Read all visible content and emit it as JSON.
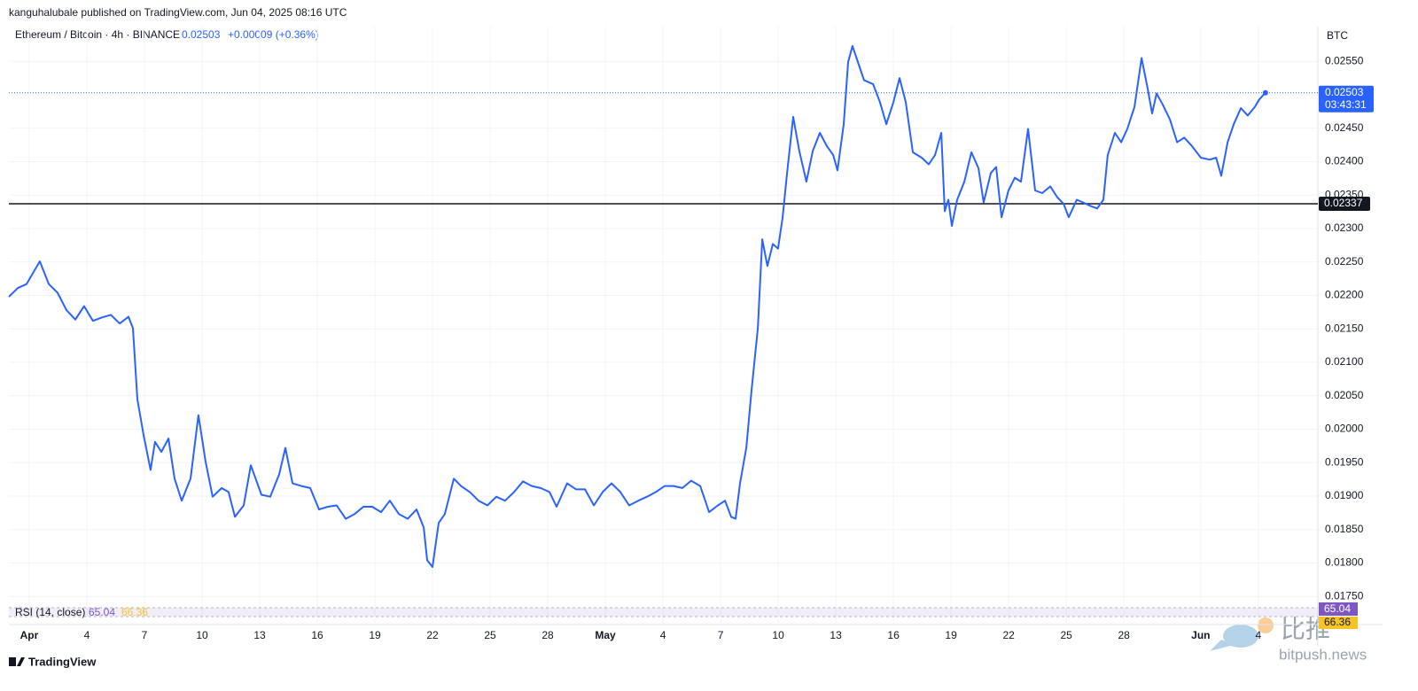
{
  "header": {
    "publisher": "kanguhalubale published on TradingView.com, Jun 04, 2025 08:16 UTC"
  },
  "chart_data": {
    "type": "line",
    "title": "Ethereum / Bitcoin · 4h · BINANCE",
    "last_price": 0.02503,
    "change": "+0.00009 (+0.36%)",
    "currency": "BTC",
    "countdown": "03:43:31",
    "color": "#2962ff",
    "grid": true,
    "x": [
      -1.06,
      -0.6,
      -0.14,
      0.55,
      1.02,
      1.48,
      1.94,
      2.4,
      2.86,
      3.32,
      3.78,
      4.25,
      4.71,
      5.17,
      5.4,
      5.63,
      5.95,
      6.32,
      6.55,
      6.88,
      7.25,
      7.57,
      7.94,
      8.4,
      8.81,
      9.18,
      9.55,
      10.02,
      10.38,
      10.71,
      11.17,
      11.54,
      12.09,
      12.55,
      13.01,
      13.34,
      13.71,
      14.17,
      14.63,
      15.09,
      15.55,
      16.01,
      16.48,
      16.94,
      17.4,
      17.86,
      18.32,
      18.78,
      19.25,
      19.71,
      20.17,
      20.54,
      20.72,
      21.0,
      21.32,
      21.64,
      22.11,
      22.48,
      22.94,
      23.4,
      23.86,
      24.32,
      24.78,
      25.25,
      25.71,
      26.17,
      26.63,
      27.09,
      27.46,
      28.01,
      28.48,
      28.94,
      29.4,
      29.86,
      30.32,
      30.78,
      31.24,
      31.71,
      32.17,
      32.63,
      33.09,
      33.55,
      34.01,
      34.47,
      34.94,
      35.4,
      35.86,
      36.23,
      36.55,
      36.78,
      37.01,
      37.34,
      37.61,
      37.94,
      38.17,
      38.44,
      38.72,
      38.99,
      39.23,
      39.46,
      39.78,
      40.1,
      40.47,
      40.8,
      41.17,
      41.54,
      41.86,
      42.09,
      42.41,
      42.64,
      42.87,
      43.15,
      43.47,
      43.94,
      44.3,
      44.63,
      45.0,
      45.32,
      45.64,
      46.01,
      46.47,
      46.84,
      47.17,
      47.49,
      47.67,
      47.86,
      48.04,
      48.32,
      48.69,
      49.06,
      49.43,
      49.7,
      50.07,
      50.35,
      50.63,
      50.99,
      51.32,
      51.64,
      52.01,
      52.38,
      52.75,
      53.17,
      53.53,
      53.86,
      54.13,
      54.55,
      54.87,
      55.24,
      55.61,
      55.93,
      56.16,
      56.53,
      56.86,
      57.18,
      57.55,
      57.92,
      58.24,
      58.47,
      58.7,
      59.03,
      59.4,
      59.77,
      60.14,
      60.55,
      61.01,
      61.47,
      61.8,
      62.07,
      62.4,
      62.72,
      63.09,
      63.45,
      63.82,
      64.05,
      64.37
    ],
    "values": [
      0.02198,
      0.02211,
      0.02217,
      0.02251,
      0.02217,
      0.02204,
      0.02178,
      0.02164,
      0.02184,
      0.02162,
      0.02167,
      0.02171,
      0.02158,
      0.02168,
      0.02151,
      0.02045,
      0.01992,
      0.01939,
      0.01981,
      0.01966,
      0.01986,
      0.01926,
      0.01893,
      0.01926,
      0.02021,
      0.01952,
      0.01899,
      0.01912,
      0.01906,
      0.01869,
      0.01886,
      0.01946,
      0.01902,
      0.01899,
      0.01932,
      0.01972,
      0.01919,
      0.01915,
      0.01912,
      0.0188,
      0.01884,
      0.01886,
      0.01866,
      0.01873,
      0.01884,
      0.01884,
      0.01876,
      0.01893,
      0.01873,
      0.01866,
      0.0188,
      0.01853,
      0.01804,
      0.01794,
      0.0186,
      0.01873,
      0.01926,
      0.01915,
      0.01906,
      0.01893,
      0.01886,
      0.01899,
      0.01893,
      0.01906,
      0.01922,
      0.01915,
      0.01912,
      0.01906,
      0.01884,
      0.01919,
      0.0191,
      0.0191,
      0.01886,
      0.01906,
      0.01919,
      0.01906,
      0.01886,
      0.01893,
      0.01899,
      0.01906,
      0.01915,
      0.01915,
      0.01912,
      0.01923,
      0.01915,
      0.01876,
      0.01886,
      0.01893,
      0.01869,
      0.01866,
      0.01919,
      0.01972,
      0.02058,
      0.02151,
      0.02284,
      0.02244,
      0.02277,
      0.0227,
      0.02317,
      0.02383,
      0.02467,
      0.02416,
      0.0237,
      0.02416,
      0.02443,
      0.02423,
      0.0241,
      0.02387,
      0.02456,
      0.02549,
      0.02573,
      0.02549,
      0.02522,
      0.02516,
      0.02489,
      0.02456,
      0.02489,
      0.02525,
      0.02489,
      0.02414,
      0.02406,
      0.02396,
      0.0241,
      0.02443,
      0.02326,
      0.02343,
      0.02304,
      0.02343,
      0.0237,
      0.02414,
      0.0239,
      0.02339,
      0.02383,
      0.02392,
      0.02317,
      0.02357,
      0.02376,
      0.0237,
      0.02449,
      0.02357,
      0.02353,
      0.02363,
      0.02347,
      0.02337,
      0.02317,
      0.02343,
      0.02339,
      0.02334,
      0.0233,
      0.02343,
      0.0241,
      0.02443,
      0.02429,
      0.02449,
      0.02482,
      0.02555,
      0.02509,
      0.02472,
      0.02502,
      0.02485,
      0.02463,
      0.02429,
      0.02436,
      0.02423,
      0.02406,
      0.02403,
      0.02406,
      0.02379,
      0.02429,
      0.02456,
      0.0248,
      0.02469,
      0.02482,
      0.02493,
      0.02503
    ],
    "xlim": [
      -1.06,
      67.1
    ],
    "xticks": [
      {
        "value": 0,
        "label": "Apr"
      },
      {
        "value": 3,
        "label": "4"
      },
      {
        "value": 6,
        "label": "7"
      },
      {
        "value": 9,
        "label": "10"
      },
      {
        "value": 12,
        "label": "13"
      },
      {
        "value": 15,
        "label": "16"
      },
      {
        "value": 18,
        "label": "19"
      },
      {
        "value": 21,
        "label": "22"
      },
      {
        "value": 24,
        "label": "25"
      },
      {
        "value": 27,
        "label": "28"
      },
      {
        "value": 30,
        "label": "May"
      },
      {
        "value": 33,
        "label": "4"
      },
      {
        "value": 36,
        "label": "7"
      },
      {
        "value": 39,
        "label": "10"
      },
      {
        "value": 42,
        "label": "13"
      },
      {
        "value": 45,
        "label": "16"
      },
      {
        "value": 48,
        "label": "19"
      },
      {
        "value": 51,
        "label": "22"
      },
      {
        "value": 54,
        "label": "25"
      },
      {
        "value": 57,
        "label": "28"
      },
      {
        "value": 61,
        "label": "Jun"
      },
      {
        "value": 64,
        "label": "4"
      }
    ],
    "ylim": [
      0.01741,
      0.02602
    ],
    "yticks": [
      {
        "value": 0.0175,
        "label": "0.01750"
      },
      {
        "value": 0.018,
        "label": "0.01800"
      },
      {
        "value": 0.0185,
        "label": "0.01850"
      },
      {
        "value": 0.019,
        "label": "0.01900"
      },
      {
        "value": 0.0195,
        "label": "0.01950"
      },
      {
        "value": 0.02,
        "label": "0.02000"
      },
      {
        "value": 0.0205,
        "label": "0.02050"
      },
      {
        "value": 0.021,
        "label": "0.02100"
      },
      {
        "value": 0.0215,
        "label": "0.02150"
      },
      {
        "value": 0.022,
        "label": "0.02200"
      },
      {
        "value": 0.0225,
        "label": "0.02250"
      },
      {
        "value": 0.023,
        "label": "0.02300"
      },
      {
        "value": 0.0235,
        "label": "0.02350"
      },
      {
        "value": 0.024,
        "label": "0.02400"
      },
      {
        "value": 0.0245,
        "label": "0.02450"
      },
      {
        "value": 0.025,
        "label": "0.02500"
      },
      {
        "value": 0.0255,
        "label": "0.02550"
      }
    ],
    "hline": 0.02337,
    "hline_color": "#131722",
    "rsi": {
      "label": "RSI (14, close)",
      "value": 65.04,
      "ma": 66.36,
      "color": "#7e57c2",
      "ma_color": "#f7c325"
    }
  },
  "footer": {
    "brand": "TradingView"
  },
  "watermark": {
    "name": "比推",
    "site": "bitpush.news"
  }
}
